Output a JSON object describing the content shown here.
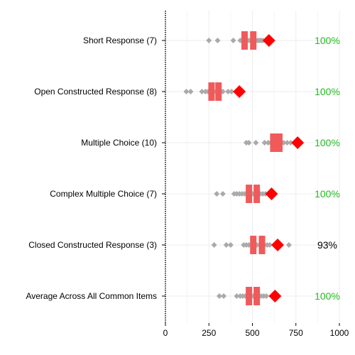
{
  "chart_data": {
    "type": "scatter",
    "orientation": "horizontal",
    "xlim": [
      0,
      1000
    ],
    "xticks": [
      0,
      250,
      500,
      750,
      1000
    ],
    "grid": true,
    "colors": {
      "points": "#aaaaaa",
      "range_bar": "#f05a5a",
      "target": "#ff0000",
      "pct_full": "#22bb22",
      "pct_partial": "#000000"
    },
    "rows": [
      {
        "label": "Short Response (7)",
        "points": [
          250,
          300,
          390,
          430,
          440,
          450,
          460,
          470,
          480,
          490,
          500,
          510,
          520,
          530,
          540,
          550,
          560
        ],
        "bar_low": 455,
        "bar_high": 505,
        "target": 595,
        "percent": "100%",
        "complete": true
      },
      {
        "label": "Open Constructed Response (8)",
        "points": [
          120,
          145,
          210,
          230,
          245,
          260,
          275,
          290,
          300,
          310,
          330,
          360,
          380
        ],
        "bar_low": 265,
        "bar_high": 305,
        "target": 425,
        "percent": "100%",
        "complete": true
      },
      {
        "label": "Multiple Choice (10)",
        "points": [
          465,
          480,
          520,
          570,
          590,
          605,
          615,
          625,
          640,
          660,
          680,
          700,
          720
        ],
        "bar_low": 620,
        "bar_high": 655,
        "target": 760,
        "percent": "100%",
        "complete": true
      },
      {
        "label": "Complex Multiple Choice (7)",
        "points": [
          295,
          330,
          395,
          410,
          425,
          440,
          455,
          470,
          480,
          490,
          500,
          510,
          520,
          530,
          545,
          560,
          575
        ],
        "bar_low": 480,
        "bar_high": 525,
        "target": 610,
        "percent": "100%",
        "complete": true
      },
      {
        "label": "Closed Constructed Response (3)",
        "points": [
          280,
          350,
          375,
          450,
          465,
          480,
          495,
          510,
          525,
          540,
          555,
          570,
          585,
          600,
          710
        ],
        "bar_low": 505,
        "bar_high": 555,
        "target": 645,
        "percent": "93%",
        "complete": false
      },
      {
        "label": "Average Across All Common Items",
        "points": [
          310,
          335,
          410,
          430,
          445,
          460,
          475,
          490,
          505,
          520,
          535,
          550,
          565,
          580
        ],
        "bar_low": 480,
        "bar_high": 525,
        "target": 630,
        "percent": "100%",
        "complete": true
      }
    ]
  }
}
